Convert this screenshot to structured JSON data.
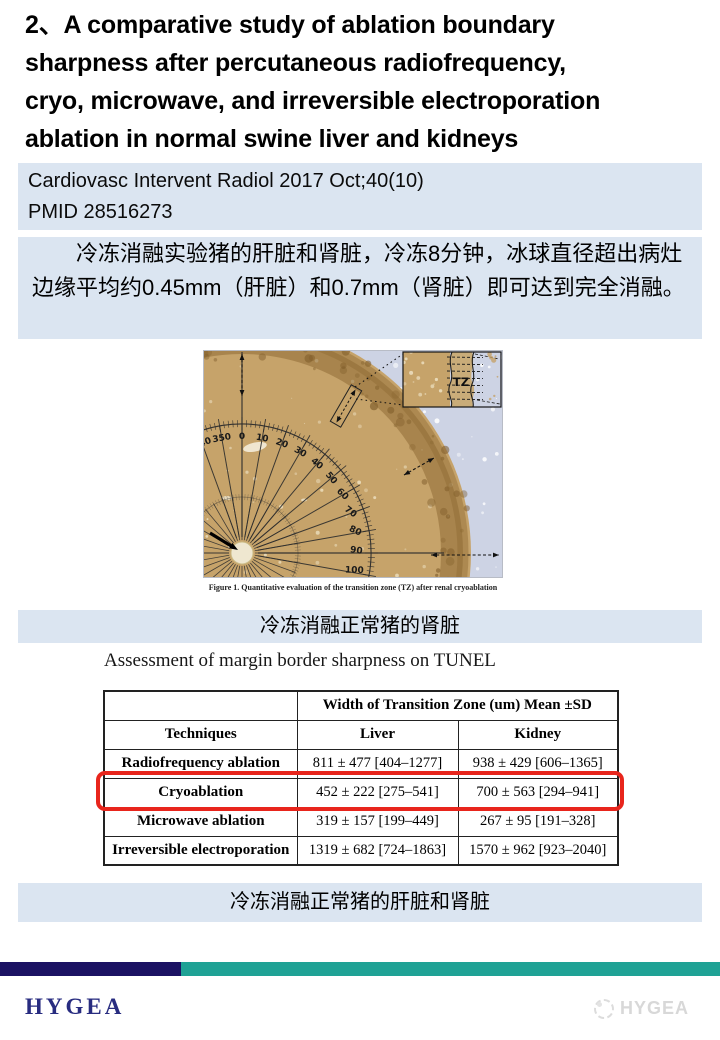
{
  "slide": {
    "title_lines": [
      "2、A comparative study of ablation boundary",
      "sharpness after percutaneous radiofrequency,",
      "cryo, microwave, and irreversible electroporation",
      "ablation in normal swine liver and kidneys"
    ],
    "citation": {
      "journal": "Cardiovasc Intervent Radiol 2017 Oct;40(10)",
      "pmid": "PMID 28516273"
    },
    "summary_cn": "冷冻消融实验猪的肝脏和肾脏，冷冻8分钟，冰球直径超出病灶边缘平均约0.45mm（肝脏）和0.7mm（肾脏）即可达到完全消融。",
    "figure": {
      "caption": "Figure 1. Quantitative evaluation of the transition zone (TZ) after renal cryoablation",
      "inset_label": "TZ",
      "angle_labels": [
        {
          "angle": -20,
          "text": "340"
        },
        {
          "angle": -10,
          "text": "350"
        },
        {
          "angle": 0,
          "text": "0"
        },
        {
          "angle": 10,
          "text": "10"
        },
        {
          "angle": 20,
          "text": "20"
        },
        {
          "angle": 30,
          "text": "30"
        },
        {
          "angle": 40,
          "text": "40"
        },
        {
          "angle": 50,
          "text": "50"
        },
        {
          "angle": 60,
          "text": "60"
        },
        {
          "angle": 70,
          "text": "70"
        },
        {
          "angle": 80,
          "text": "80"
        },
        {
          "angle": 90,
          "text": "90"
        },
        {
          "angle": 100,
          "text": "100"
        }
      ]
    },
    "banner_kidney": "冷冻消融正常猪的肾脏",
    "table_title": "Assessment of margin border sharpness on TUNEL",
    "table": {
      "span_header": "Width of Transition Zone (um) Mean ±SD",
      "col_headers": [
        "Techniques",
        "Liver",
        "Kidney"
      ],
      "rows": [
        {
          "technique": "Radiofrequency ablation",
          "liver": "811 ± 477 [404–1277]",
          "kidney": "938 ± 429 [606–1365]",
          "highlight": false
        },
        {
          "technique": "Cryoablation",
          "liver": "452 ± 222 [275–541]",
          "kidney": "700 ± 563 [294–941]",
          "highlight": true
        },
        {
          "technique": "Microwave ablation",
          "liver": "319 ± 157 [199–449]",
          "kidney": "267 ± 95 [191–328]",
          "highlight": false
        },
        {
          "technique": "Irreversible electroporation",
          "liver": "1319 ± 682 [724–1863]",
          "kidney": "1570 ± 962 [923–2040]",
          "highlight": false
        }
      ]
    },
    "banner_liver_kidney": "冷冻消融正常猪的肝脏和肾脏",
    "footer": {
      "logo": "HYGEA",
      "watermark": "HYGEA"
    }
  },
  "colors": {
    "banner_bg": "#dbe5f1",
    "footer_navy": "#1b1263",
    "footer_teal": "#1fa295",
    "logo_color": "#282c80",
    "highlight_red": "#e8251c"
  }
}
